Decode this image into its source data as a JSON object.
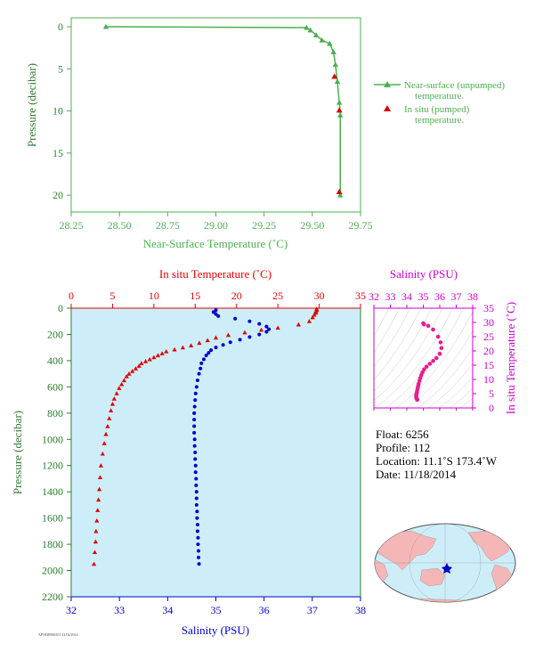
{
  "chart_data": [
    {
      "type": "line",
      "id": "near-surface",
      "xlabel": "Near-Surface Temperature (˚C)",
      "ylabel": "Pressure (decibar)",
      "xlim": [
        28.25,
        29.75
      ],
      "ylim": [
        0,
        22
      ],
      "x_ticks": [
        "28.25",
        "28.50",
        "28.75",
        "29.00",
        "29.25",
        "29.50",
        "29.75"
      ],
      "y_ticks": [
        "0",
        "5",
        "10",
        "15",
        "20"
      ],
      "colors": {
        "axis": "#4caf50",
        "unpumped": "#4caf50",
        "pumped": "#d50000"
      },
      "series": [
        {
          "name": "Near-surface (unpumped) temperature.",
          "points": [
            [
              28.43,
              0.0
            ],
            [
              29.47,
              0.1
            ],
            [
              29.49,
              0.4
            ],
            [
              29.52,
              1.0
            ],
            [
              29.55,
              1.6
            ],
            [
              29.59,
              2.0
            ],
            [
              29.61,
              3.0
            ],
            [
              29.62,
              4.5
            ],
            [
              29.63,
              6.5
            ],
            [
              29.64,
              9.0
            ],
            [
              29.645,
              10.5
            ],
            [
              29.645,
              20.0
            ]
          ]
        },
        {
          "name": "In situ (pumped) temperature.",
          "points": [
            [
              29.615,
              5.9
            ],
            [
              29.64,
              9.9
            ],
            [
              29.64,
              19.6
            ]
          ]
        }
      ],
      "legend": [
        "Near-surface (unpumped)",
        "temperature.",
        "In situ (pumped)",
        "temperature."
      ]
    },
    {
      "type": "line",
      "id": "profile",
      "ylabel": "Pressure (decibar)",
      "temp_label": "In situ Temperature (˚C)",
      "sal_label": "Salinity (PSU)",
      "temp_lim": [
        0,
        35
      ],
      "sal_lim": [
        32,
        38
      ],
      "ylim": [
        0,
        2200
      ],
      "temp_ticks": [
        "0",
        "5",
        "10",
        "15",
        "20",
        "25",
        "30",
        "35"
      ],
      "sal_ticks": [
        "32",
        "33",
        "34",
        "35",
        "36",
        "37",
        "38"
      ],
      "y_ticks": [
        "0",
        "200",
        "400",
        "600",
        "800",
        "1000",
        "1200",
        "1400",
        "1600",
        "1800",
        "2000",
        "2200"
      ],
      "colors": {
        "temperature": "#e00000",
        "salinity": "#0000cc",
        "background": "#cdeef8",
        "axis": "#2e7d32"
      },
      "series": [
        {
          "name": "Temperature",
          "points": [
            [
              29.7,
              5
            ],
            [
              29.7,
              15
            ],
            [
              29.6,
              25
            ],
            [
              29.6,
              35
            ],
            [
              29.4,
              50
            ],
            [
              29.2,
              70
            ],
            [
              28.8,
              100
            ],
            [
              27.5,
              125
            ],
            [
              25.0,
              150
            ],
            [
              23.0,
              165
            ],
            [
              21.0,
              185
            ],
            [
              19.0,
              205
            ],
            [
              17.5,
              225
            ],
            [
              16.5,
              245
            ],
            [
              15.5,
              265
            ],
            [
              14.5,
              285
            ],
            [
              13.5,
              300
            ],
            [
              12.5,
              315
            ],
            [
              11.5,
              330
            ],
            [
              11.0,
              345
            ],
            [
              10.5,
              360
            ],
            [
              10.0,
              375
            ],
            [
              9.5,
              390
            ],
            [
              9.0,
              405
            ],
            [
              8.5,
              420
            ],
            [
              8.2,
              440
            ],
            [
              7.8,
              460
            ],
            [
              7.4,
              480
            ],
            [
              7.0,
              500
            ],
            [
              6.7,
              520
            ],
            [
              6.4,
              550
            ],
            [
              6.1,
              580
            ],
            [
              5.8,
              610
            ],
            [
              5.5,
              650
            ],
            [
              5.2,
              690
            ],
            [
              5.0,
              730
            ],
            [
              4.8,
              780
            ],
            [
              4.6,
              840
            ],
            [
              4.4,
              900
            ],
            [
              4.2,
              960
            ],
            [
              4.0,
              1030
            ],
            [
              3.8,
              1110
            ],
            [
              3.6,
              1200
            ],
            [
              3.5,
              1290
            ],
            [
              3.4,
              1380
            ],
            [
              3.3,
              1460
            ],
            [
              3.2,
              1540
            ],
            [
              3.1,
              1620
            ],
            [
              3.0,
              1700
            ],
            [
              2.95,
              1780
            ],
            [
              2.85,
              1860
            ],
            [
              2.75,
              1950
            ]
          ]
        },
        {
          "name": "Salinity",
          "points": [
            [
              35.0,
              15
            ],
            [
              34.95,
              30
            ],
            [
              35.0,
              45
            ],
            [
              35.05,
              60
            ],
            [
              35.4,
              80
            ],
            [
              35.7,
              100
            ],
            [
              35.9,
              120
            ],
            [
              36.05,
              140
            ],
            [
              36.1,
              160
            ],
            [
              36.05,
              180
            ],
            [
              35.9,
              200
            ],
            [
              35.7,
              220
            ],
            [
              35.5,
              240
            ],
            [
              35.3,
              260
            ],
            [
              35.15,
              280
            ],
            [
              35.0,
              300
            ],
            [
              34.9,
              320
            ],
            [
              34.85,
              340
            ],
            [
              34.8,
              360
            ],
            [
              34.75,
              390
            ],
            [
              34.7,
              420
            ],
            [
              34.68,
              460
            ],
            [
              34.65,
              500
            ],
            [
              34.62,
              550
            ],
            [
              34.6,
              600
            ],
            [
              34.58,
              650
            ],
            [
              34.57,
              700
            ],
            [
              34.56,
              750
            ],
            [
              34.55,
              800
            ],
            [
              34.55,
              850
            ],
            [
              34.55,
              900
            ],
            [
              34.55,
              950
            ],
            [
              34.56,
              1000
            ],
            [
              34.56,
              1050
            ],
            [
              34.57,
              1100
            ],
            [
              34.57,
              1150
            ],
            [
              34.58,
              1200
            ],
            [
              34.58,
              1250
            ],
            [
              34.59,
              1300
            ],
            [
              34.59,
              1350
            ],
            [
              34.6,
              1400
            ],
            [
              34.6,
              1450
            ],
            [
              34.6,
              1500
            ],
            [
              34.61,
              1550
            ],
            [
              34.61,
              1600
            ],
            [
              34.62,
              1650
            ],
            [
              34.62,
              1700
            ],
            [
              34.63,
              1750
            ],
            [
              34.63,
              1800
            ],
            [
              34.64,
              1850
            ],
            [
              34.64,
              1900
            ],
            [
              34.65,
              1950
            ]
          ]
        }
      ]
    },
    {
      "type": "scatter",
      "id": "ts-diagram",
      "xlabel": "Salinity (PSU)",
      "ylabel": "In situ Temperature (˚C)",
      "xlim": [
        32,
        38
      ],
      "ylim": [
        0,
        35
      ],
      "x_ticks": [
        "32",
        "33",
        "34",
        "35",
        "36",
        "37",
        "38"
      ],
      "y_ticks": [
        "0",
        "5",
        "10",
        "15",
        "20",
        "25",
        "30",
        "35"
      ],
      "colors": {
        "axis": "#cc00cc",
        "points": "#e91e8c"
      },
      "points": [
        [
          35.0,
          29.7
        ],
        [
          35.05,
          29.3
        ],
        [
          35.3,
          28.8
        ],
        [
          35.6,
          27.5
        ],
        [
          35.9,
          25.0
        ],
        [
          36.05,
          23.0
        ],
        [
          36.1,
          21.0
        ],
        [
          36.0,
          19.0
        ],
        [
          35.8,
          17.5
        ],
        [
          35.6,
          16.5
        ],
        [
          35.4,
          15.5
        ],
        [
          35.2,
          14.5
        ],
        [
          35.05,
          13.5
        ],
        [
          34.95,
          12.5
        ],
        [
          34.88,
          11.5
        ],
        [
          34.82,
          10.5
        ],
        [
          34.77,
          9.5
        ],
        [
          34.72,
          8.5
        ],
        [
          34.69,
          7.8
        ],
        [
          34.66,
          7.0
        ],
        [
          34.64,
          6.4
        ],
        [
          34.62,
          5.8
        ],
        [
          34.6,
          5.2
        ],
        [
          34.58,
          4.8
        ],
        [
          34.57,
          4.4
        ],
        [
          34.57,
          4.0
        ],
        [
          34.58,
          3.6
        ],
        [
          34.59,
          3.4
        ],
        [
          34.6,
          3.2
        ],
        [
          34.62,
          3.0
        ],
        [
          34.64,
          2.85
        ]
      ]
    }
  ],
  "float_info": {
    "float": "Float:  6256",
    "profile": "Profile:  112",
    "location": "Location:  11.1˚S  173.4˚W",
    "date": "Date:  11/18/2014"
  },
  "map": {
    "marker_color": "#0000cc",
    "land_color": "#f4b6b6",
    "ocean_color": "#cdeef8"
  },
  "footer_code": "AP/H3P000351 12/02/2014"
}
